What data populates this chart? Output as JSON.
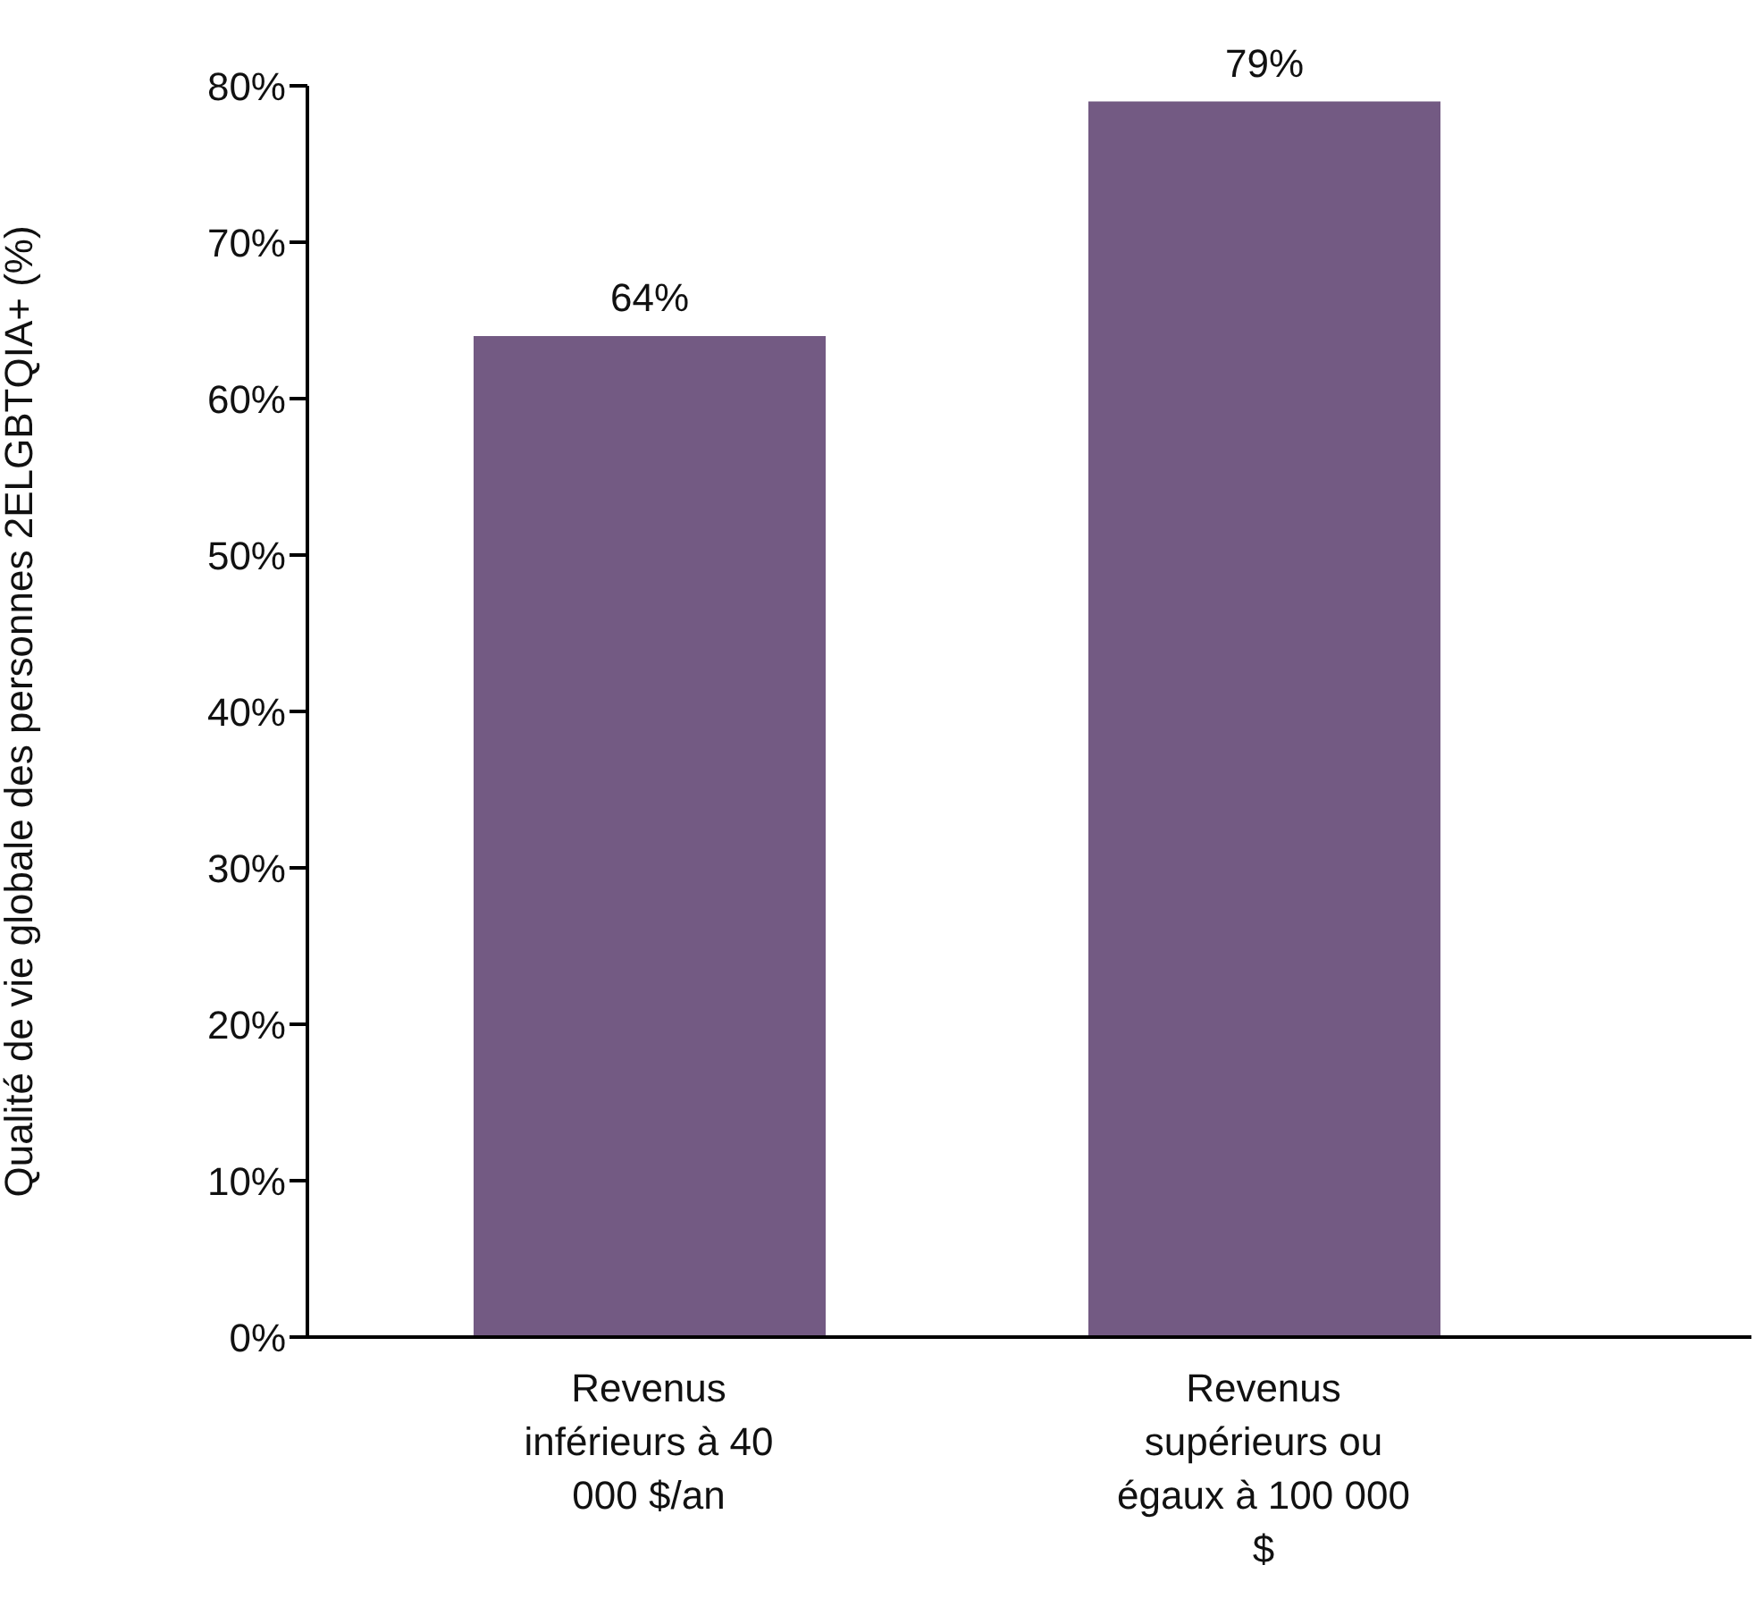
{
  "chart_data": {
    "type": "bar",
    "ylabel": "Qualité de vie globale des personnes 2ELGBTQIA+ (%)",
    "categories": [
      "Revenus inférieurs à 40 000 $/an",
      "Revenus supérieurs ou égaux à 100 000 $"
    ],
    "values": [
      64,
      79
    ],
    "color": "#735a83",
    "value_labels": [
      "64%",
      "79%"
    ],
    "ylim": [
      0,
      80
    ],
    "yticks": [
      {
        "value": 0,
        "label": "0%"
      },
      {
        "value": 10,
        "label": "10%"
      },
      {
        "value": 20,
        "label": "20%"
      },
      {
        "value": 30,
        "label": "30%"
      },
      {
        "value": 40,
        "label": "40%"
      },
      {
        "value": 50,
        "label": "50%"
      },
      {
        "value": 60,
        "label": "60%"
      },
      {
        "value": 70,
        "label": "70%"
      },
      {
        "value": 80,
        "label": "80%"
      }
    ],
    "grid": false,
    "legend": false
  }
}
